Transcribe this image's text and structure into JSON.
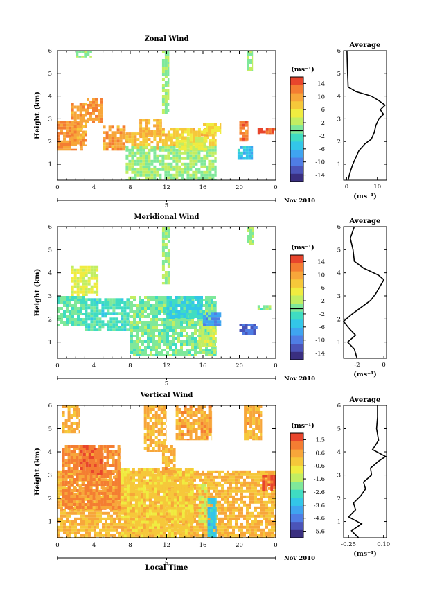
{
  "figure": {
    "xlabel": "Local Time",
    "date_day": "5",
    "date_month": "Nov 2010"
  },
  "chart_data": [
    {
      "type": "heatmap",
      "title": "Zonal Wind",
      "ylabel": "Height (km)",
      "xlabel": "",
      "x_ticks": [
        "0",
        "4",
        "8",
        "12",
        "16",
        "20",
        "0"
      ],
      "y_ticks": [
        "1",
        "2",
        "3",
        "4",
        "5",
        "6"
      ],
      "xlim": [
        0,
        24
      ],
      "ylim": [
        0.3,
        6
      ],
      "colorbar": {
        "unit": "(ms⁻¹)",
        "ticks": [
          "14",
          "10",
          "6",
          "2",
          "-2",
          "-6",
          "-10",
          "-14"
        ],
        "range": [
          -16,
          16
        ]
      },
      "regions": [
        {
          "t0": 0.0,
          "t1": 2.8,
          "h0": 1.6,
          "h1": 2.9,
          "v": 11
        },
        {
          "t0": 1.5,
          "t1": 3.2,
          "h0": 1.8,
          "h1": 3.7,
          "v": 10
        },
        {
          "t0": 3.2,
          "t1": 5.0,
          "h0": 2.8,
          "h1": 3.9,
          "v": 11
        },
        {
          "t0": 5.0,
          "t1": 7.5,
          "h0": 1.6,
          "h1": 2.7,
          "v": 10
        },
        {
          "t0": 7.5,
          "t1": 11.5,
          "h0": 1.6,
          "h1": 2.4,
          "v": 8
        },
        {
          "t0": 9.0,
          "t1": 11.5,
          "h0": 2.2,
          "h1": 3.0,
          "v": 9
        },
        {
          "t0": 11.5,
          "t1": 17.5,
          "h0": 1.8,
          "h1": 2.6,
          "v": 7
        },
        {
          "t0": 16.0,
          "t1": 18.0,
          "h0": 2.3,
          "h1": 2.8,
          "v": 6
        },
        {
          "t0": 7.5,
          "t1": 17.5,
          "h0": 0.3,
          "h1": 1.8,
          "v": 1
        },
        {
          "t0": 13.0,
          "t1": 16.5,
          "h0": 1.6,
          "h1": 2.2,
          "v": 4
        },
        {
          "t0": 11.5,
          "t1": 12.3,
          "h0": 3.2,
          "h1": 6.0,
          "v": 1
        },
        {
          "t0": 20.8,
          "t1": 21.5,
          "h0": 5.1,
          "h1": 6.0,
          "v": 1
        },
        {
          "t0": 2.0,
          "t1": 3.8,
          "h0": 5.7,
          "h1": 6.0,
          "v": 1
        },
        {
          "t0": 19.8,
          "t1": 21.5,
          "h0": 1.2,
          "h1": 1.8,
          "v": -5
        },
        {
          "t0": 20.0,
          "t1": 21.0,
          "h0": 2.0,
          "h1": 2.9,
          "v": 12
        },
        {
          "t0": 22.0,
          "t1": 24.0,
          "h0": 2.3,
          "h1": 2.6,
          "v": 14
        }
      ],
      "profile": {
        "title": "Average",
        "xlabel": "(ms⁻¹)",
        "x_ticks": [
          "0",
          "10"
        ],
        "xlim": [
          -1,
          13
        ],
        "heights": [
          0.3,
          0.6,
          1.0,
          1.3,
          1.6,
          1.9,
          2.1,
          2.4,
          2.7,
          3.0,
          3.2,
          3.4,
          3.6,
          3.8,
          4.0,
          4.2,
          4.4,
          5.0,
          5.5,
          6.0
        ],
        "values": [
          0.5,
          1.0,
          2.0,
          3.0,
          4.0,
          6.0,
          8.0,
          9.0,
          9.5,
          10.5,
          12.0,
          11.0,
          12.5,
          10.5,
          8.0,
          3.0,
          0.5,
          0.3,
          0.2,
          0.1
        ]
      }
    },
    {
      "type": "heatmap",
      "title": "Meridional Wind",
      "ylabel": "Height (km)",
      "xlabel": "",
      "x_ticks": [
        "0",
        "4",
        "8",
        "12",
        "16",
        "20",
        "0"
      ],
      "y_ticks": [
        "1",
        "2",
        "3",
        "4",
        "5",
        "6"
      ],
      "xlim": [
        0,
        24
      ],
      "ylim": [
        0.3,
        6
      ],
      "colorbar": {
        "unit": "(ms⁻¹)",
        "ticks": [
          "14",
          "10",
          "6",
          "2",
          "-2",
          "-6",
          "-10",
          "-14"
        ],
        "range": [
          -16,
          16
        ]
      },
      "regions": [
        {
          "t0": 0.0,
          "t1": 3.0,
          "h0": 1.7,
          "h1": 3.0,
          "v": -1
        },
        {
          "t0": 1.5,
          "t1": 4.5,
          "h0": 3.0,
          "h1": 4.3,
          "v": 4
        },
        {
          "t0": 3.0,
          "t1": 8.0,
          "h0": 1.5,
          "h1": 2.9,
          "v": -2
        },
        {
          "t0": 8.0,
          "t1": 17.5,
          "h0": 0.4,
          "h1": 3.0,
          "v": 0
        },
        {
          "t0": 12.0,
          "t1": 16.0,
          "h0": 2.0,
          "h1": 3.0,
          "v": -4
        },
        {
          "t0": 15.5,
          "t1": 17.5,
          "h0": 0.8,
          "h1": 1.8,
          "v": 3
        },
        {
          "t0": 16.0,
          "t1": 18.0,
          "h0": 1.7,
          "h1": 2.3,
          "v": -8
        },
        {
          "t0": 11.5,
          "t1": 12.4,
          "h0": 3.5,
          "h1": 6.0,
          "v": 1
        },
        {
          "t0": 20.8,
          "t1": 21.6,
          "h0": 5.2,
          "h1": 6.0,
          "v": 1
        },
        {
          "t0": 20.0,
          "t1": 22.0,
          "h0": 1.3,
          "h1": 1.8,
          "v": -11
        },
        {
          "t0": 22.0,
          "t1": 23.5,
          "h0": 2.4,
          "h1": 2.6,
          "v": 0
        }
      ],
      "profile": {
        "title": "Average",
        "xlabel": "(ms⁻¹)",
        "x_ticks": [
          "-2",
          "0"
        ],
        "xlim": [
          -3,
          0.2
        ],
        "heights": [
          0.3,
          0.7,
          1.0,
          1.3,
          1.6,
          1.9,
          2.2,
          2.5,
          2.8,
          3.1,
          3.4,
          3.7,
          3.9,
          4.2,
          4.5,
          5.0,
          5.5,
          6.0
        ],
        "values": [
          -2.0,
          -2.2,
          -2.7,
          -2.1,
          -2.6,
          -3.0,
          -2.4,
          -1.7,
          -1.0,
          -0.6,
          -0.3,
          0.0,
          -0.4,
          -1.5,
          -2.2,
          -2.3,
          -2.5,
          -2.2
        ]
      }
    },
    {
      "type": "heatmap",
      "title": "Vertical Wind",
      "ylabel": "Height (km)",
      "xlabel": "Local Time",
      "x_ticks": [
        "0",
        "4",
        "8",
        "12",
        "16",
        "20",
        "0"
      ],
      "y_ticks": [
        "1",
        "2",
        "3",
        "4",
        "5",
        "6"
      ],
      "xlim": [
        0,
        24
      ],
      "ylim": [
        0.3,
        6
      ],
      "colorbar": {
        "unit": "(ms⁻¹)",
        "ticks": [
          "1.5",
          "0.6",
          "-0.6",
          "-1.6",
          "-2.6",
          "-3.6",
          "-4.6",
          "-5.6"
        ],
        "range": [
          -6,
          2
        ]
      },
      "regions": [
        {
          "t0": 0.0,
          "t1": 24.0,
          "h0": 0.3,
          "h1": 3.2,
          "v": 0.2
        },
        {
          "t0": 0.5,
          "t1": 7.0,
          "h0": 1.5,
          "h1": 4.3,
          "v": 0.9
        },
        {
          "t0": 2.5,
          "t1": 5.0,
          "h0": 3.0,
          "h1": 4.3,
          "v": 1.2
        },
        {
          "t0": 7.0,
          "t1": 15.0,
          "h0": 0.3,
          "h1": 3.3,
          "v": -0.2
        },
        {
          "t0": 9.5,
          "t1": 12.0,
          "h0": 4.0,
          "h1": 6.0,
          "v": 0.3
        },
        {
          "t0": 13.0,
          "t1": 17.0,
          "h0": 4.5,
          "h1": 6.0,
          "v": 0.4
        },
        {
          "t0": 11.5,
          "t1": 13.0,
          "h0": 3.0,
          "h1": 4.3,
          "v": 0.3
        },
        {
          "t0": 16.5,
          "t1": 17.5,
          "h0": 0.3,
          "h1": 2.0,
          "v": -3.2
        },
        {
          "t0": 15.5,
          "t1": 16.5,
          "h0": 0.8,
          "h1": 2.6,
          "v": -1.2
        },
        {
          "t0": 22.5,
          "t1": 24.0,
          "h0": 2.3,
          "h1": 3.0,
          "v": 1.5
        },
        {
          "t0": 0.5,
          "t1": 2.5,
          "h0": 4.8,
          "h1": 6.0,
          "v": 0.2
        },
        {
          "t0": 20.5,
          "t1": 22.5,
          "h0": 4.5,
          "h1": 6.0,
          "v": 0.3
        }
      ],
      "profile": {
        "title": "Average",
        "xlabel": "(ms⁻¹)",
        "x_ticks": [
          "-0.25",
          "0.10"
        ],
        "xlim": [
          -0.3,
          0.13
        ],
        "heights": [
          0.3,
          0.6,
          0.9,
          1.2,
          1.5,
          1.8,
          2.1,
          2.4,
          2.7,
          3.0,
          3.3,
          3.6,
          3.8,
          4.1,
          4.5,
          5.0,
          5.5,
          6.0
        ],
        "values": [
          -0.15,
          -0.22,
          -0.12,
          -0.25,
          -0.18,
          -0.2,
          -0.13,
          -0.08,
          -0.1,
          -0.02,
          -0.03,
          0.05,
          0.12,
          -0.01,
          0.05,
          0.03,
          0.04,
          0.04
        ]
      }
    }
  ]
}
